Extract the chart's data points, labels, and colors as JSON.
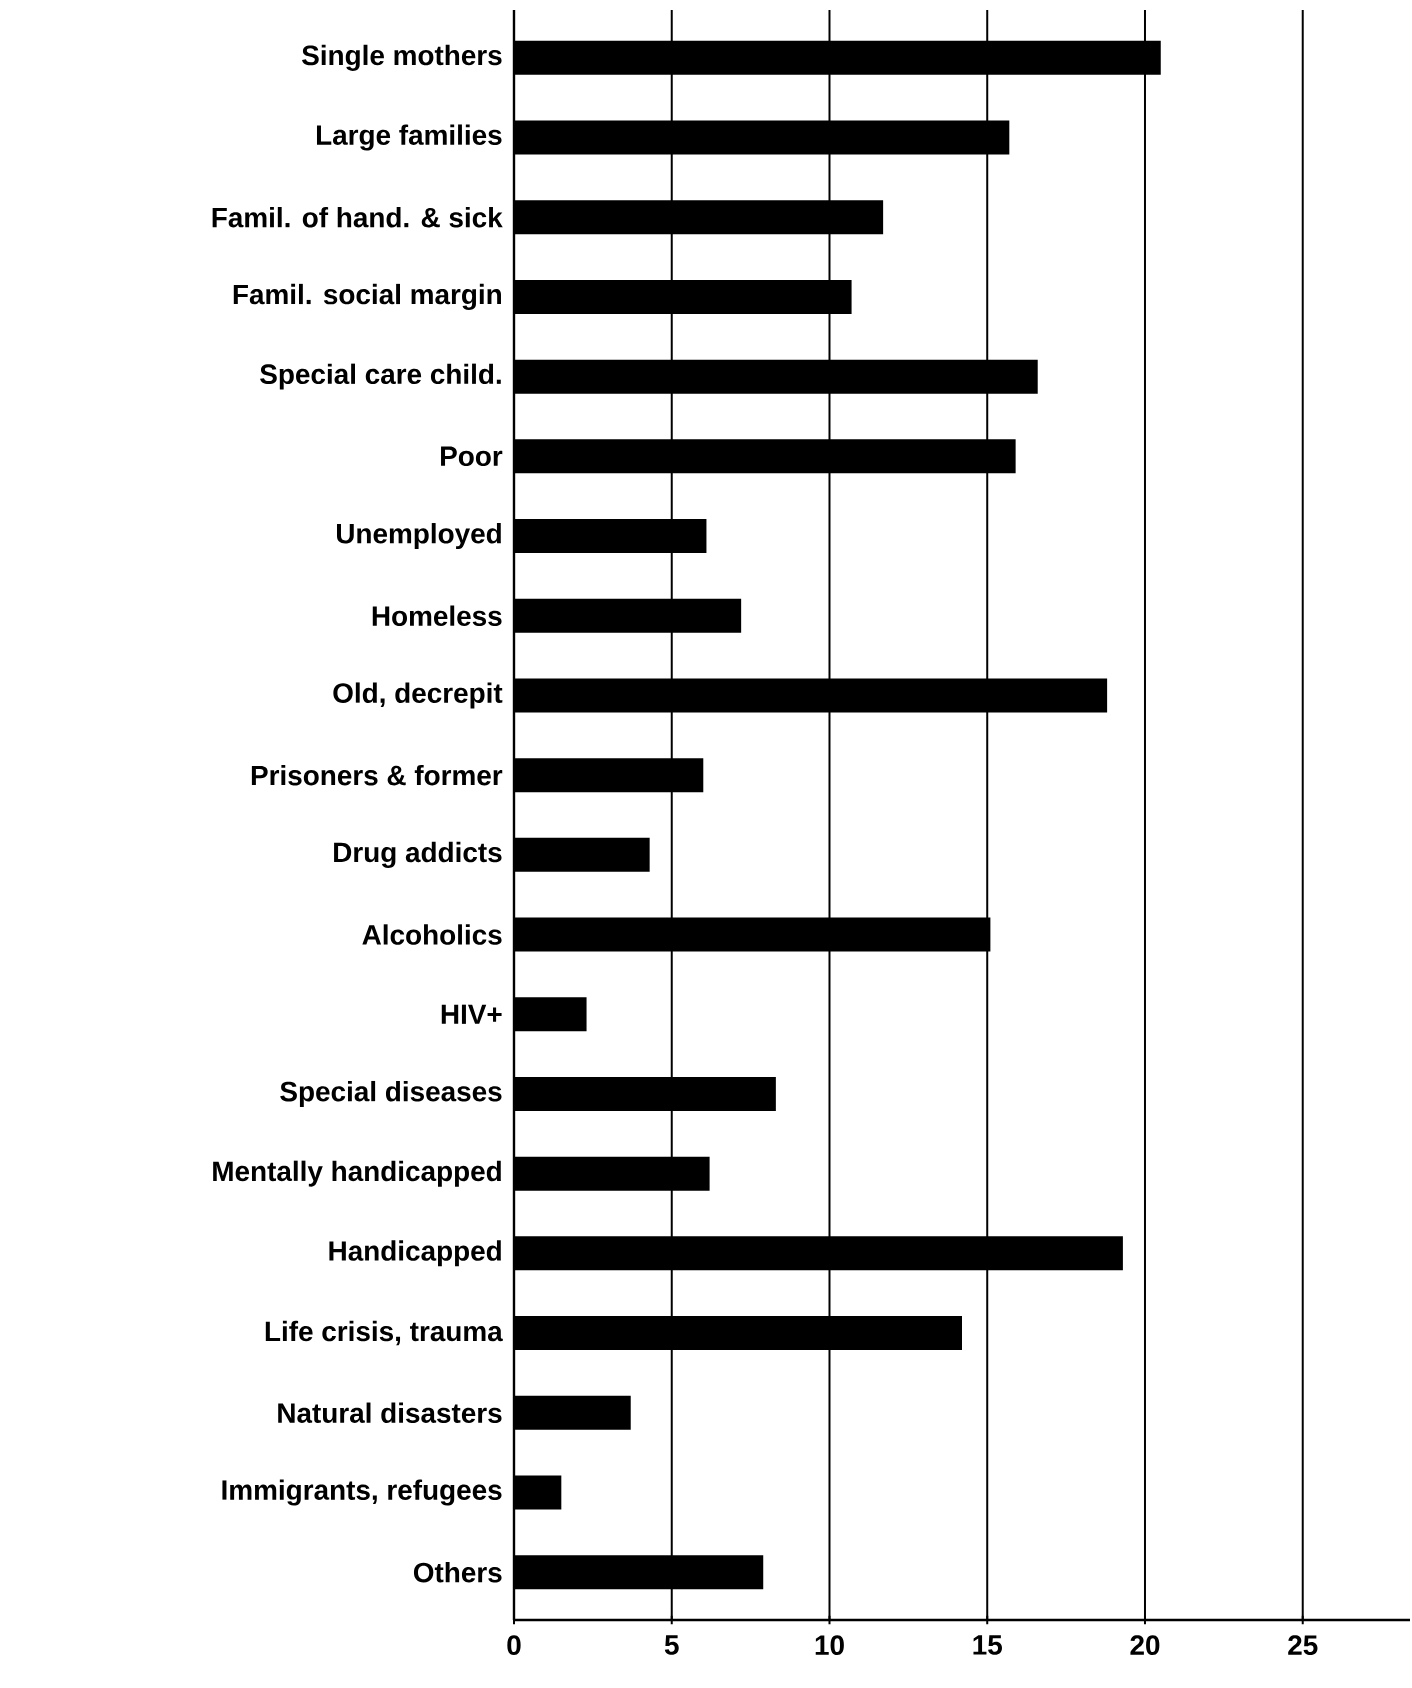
{
  "chart_data": {
    "type": "bar",
    "orientation": "horizontal",
    "categories": [
      "Single mothers",
      "Large families",
      "Famil. of hand. & sick",
      "Famil. social margin",
      "Special care child.",
      "Poor",
      "Unemployed",
      "Homeless",
      "Old, decrepit",
      "Prisoners & former",
      "Drug addicts",
      "Alcoholics",
      "HIV+",
      "Special diseases",
      "Mentally handicapped",
      "Handicapped",
      "Life crisis, trauma",
      "Natural disasters",
      "Immigrants, refugees",
      "Others"
    ],
    "values": [
      20.5,
      15.7,
      11.7,
      10.7,
      16.6,
      15.9,
      6.1,
      7.2,
      18.8,
      6.0,
      4.3,
      15.1,
      2.3,
      8.3,
      6.2,
      19.3,
      14.2,
      3.7,
      1.5,
      7.9
    ],
    "color": "#000000",
    "xlim": [
      0,
      28.4
    ],
    "xticks": [
      0,
      5,
      10,
      15,
      20,
      25
    ],
    "grid": "x"
  }
}
